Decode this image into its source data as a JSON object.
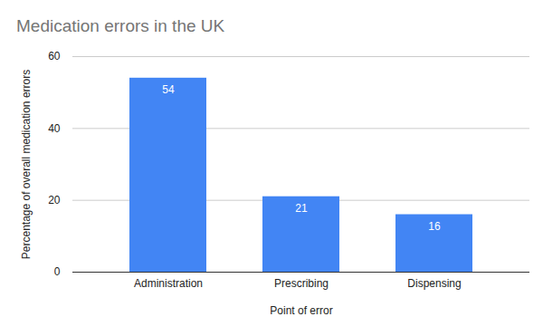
{
  "chart_data": {
    "type": "bar",
    "title": "Medication errors in the UK",
    "x_label": "Point of error",
    "y_label": "Percentage of overall medication errors",
    "categories": [
      "Administration",
      "Prescribing",
      "Dispensing"
    ],
    "values": [
      54,
      21,
      16
    ],
    "color": "#4285f4",
    "ylim": [
      0,
      60
    ],
    "yticks": [
      0,
      20,
      40,
      60
    ],
    "grid": true,
    "data_labels": true
  }
}
